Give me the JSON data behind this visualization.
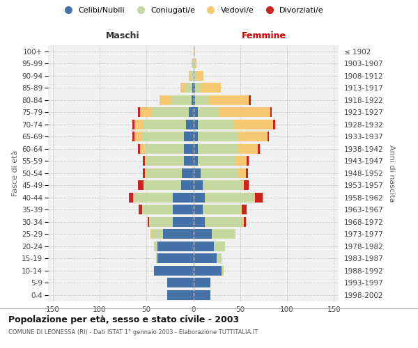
{
  "age_groups": [
    "0-4",
    "5-9",
    "10-14",
    "15-19",
    "20-24",
    "25-29",
    "30-34",
    "35-39",
    "40-44",
    "45-49",
    "50-54",
    "55-59",
    "60-64",
    "65-69",
    "70-74",
    "75-79",
    "80-84",
    "85-89",
    "90-94",
    "95-99",
    "100+"
  ],
  "birth_years": [
    "1998-2002",
    "1993-1997",
    "1988-1992",
    "1983-1987",
    "1978-1982",
    "1973-1977",
    "1968-1972",
    "1963-1967",
    "1958-1962",
    "1953-1957",
    "1948-1952",
    "1943-1947",
    "1938-1942",
    "1933-1937",
    "1928-1932",
    "1923-1927",
    "1918-1922",
    "1913-1917",
    "1908-1912",
    "1903-1907",
    "≤ 1902"
  ],
  "colors": {
    "celibi": "#4472a8",
    "coniugati": "#c5d8a0",
    "vedovi": "#f5c872",
    "divorziati": "#cc2222"
  },
  "maschi": {
    "celibi": [
      28,
      28,
      42,
      38,
      38,
      32,
      22,
      22,
      22,
      13,
      12,
      10,
      10,
      10,
      8,
      5,
      2,
      1,
      0,
      0,
      0
    ],
    "coniugati": [
      0,
      0,
      0,
      2,
      4,
      12,
      25,
      33,
      42,
      40,
      38,
      40,
      42,
      45,
      45,
      40,
      22,
      8,
      3,
      1,
      0
    ],
    "vedovi": [
      0,
      0,
      0,
      0,
      0,
      2,
      0,
      0,
      0,
      0,
      2,
      2,
      5,
      8,
      10,
      12,
      12,
      5,
      2,
      1,
      0
    ],
    "divorziati": [
      0,
      0,
      0,
      0,
      0,
      0,
      2,
      3,
      5,
      6,
      2,
      2,
      2,
      2,
      2,
      2,
      0,
      0,
      0,
      0,
      0
    ]
  },
  "femmine": {
    "celibi": [
      18,
      18,
      30,
      25,
      22,
      20,
      12,
      10,
      12,
      10,
      8,
      5,
      5,
      5,
      5,
      5,
      2,
      2,
      1,
      0,
      0
    ],
    "coniugati": [
      0,
      0,
      2,
      5,
      12,
      25,
      40,
      40,
      52,
      42,
      40,
      40,
      42,
      42,
      38,
      22,
      15,
      5,
      2,
      0,
      0
    ],
    "vedovi": [
      0,
      0,
      0,
      0,
      0,
      0,
      2,
      2,
      2,
      2,
      8,
      12,
      22,
      32,
      42,
      55,
      42,
      22,
      8,
      3,
      2
    ],
    "divorziati": [
      0,
      0,
      0,
      0,
      0,
      0,
      2,
      5,
      8,
      5,
      2,
      2,
      2,
      2,
      2,
      2,
      2,
      0,
      0,
      0,
      0
    ]
  },
  "title": "Popolazione per età, sesso e stato civile - 2003",
  "subtitle": "COMUNE DI LEONESSA (RI) - Dati ISTAT 1° gennaio 2003 - Elaborazione TUTTITALIA.IT",
  "label_maschi": "Maschi",
  "label_femmine": "Femmine",
  "ylabel_left": "Fasce di età",
  "ylabel_right": "Anni di nascita",
  "xlim": 155,
  "legend_labels": [
    "Celibi/Nubili",
    "Coniugati/e",
    "Vedovi/e",
    "Divorziati/e"
  ]
}
